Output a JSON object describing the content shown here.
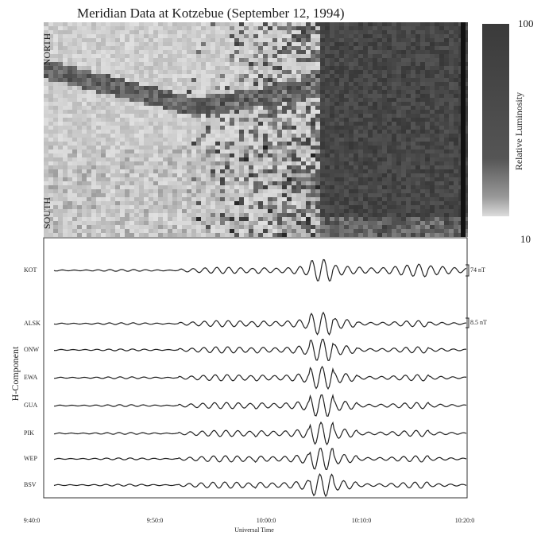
{
  "figure": {
    "title": "Meridian Data at Kotzebue (September 12, 1994)",
    "keogram": {
      "north": "NORTH",
      "south": "SOUTH"
    },
    "colorbar": {
      "max": "100",
      "min": "10",
      "label": "Relative Luminosity"
    },
    "traces": {
      "ylabel": "H-Component",
      "stations": [
        "KOT",
        "ALSK",
        "ONW",
        "EWA",
        "GUA",
        "PIK",
        "WEP",
        "BSV"
      ],
      "scales": [
        "74 nT",
        "8.5 nT"
      ],
      "xticks": [
        "9:40:0",
        "9:50:0",
        "10:00:0",
        "10:10:0",
        "10:20:0"
      ],
      "xlabel": "Universal Time"
    }
  }
}
